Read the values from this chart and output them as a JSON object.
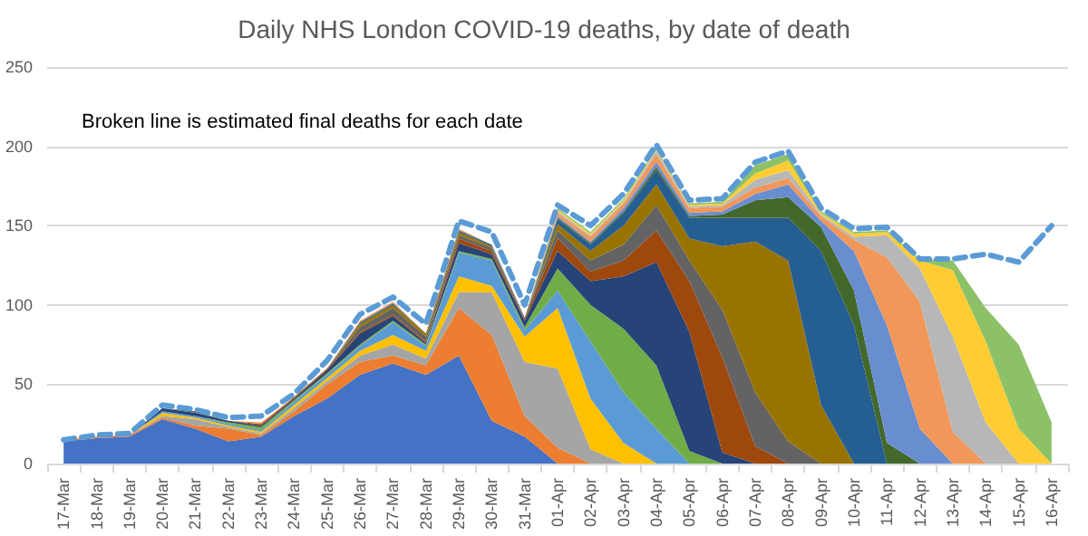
{
  "chart_data": {
    "type": "area",
    "stacked": true,
    "title": "Daily NHS London COVID-19 deaths, by date of death",
    "annotations": [
      "Broken line is estimated final deaths for each date"
    ],
    "categories": [
      "17-Mar",
      "18-Mar",
      "19-Mar",
      "20-Mar",
      "21-Mar",
      "22-Mar",
      "23-Mar",
      "24-Mar",
      "25-Mar",
      "26-Mar",
      "27-Mar",
      "28-Mar",
      "29-Mar",
      "30-Mar",
      "31-Mar",
      "01-Apr",
      "02-Apr",
      "03-Apr",
      "04-Apr",
      "05-Apr",
      "06-Apr",
      "07-Apr",
      "08-Apr",
      "09-Apr",
      "10-Apr",
      "11-Apr",
      "12-Apr",
      "13-Apr",
      "14-Apr",
      "15-Apr",
      "16-Apr"
    ],
    "series": [
      {
        "color": "#4472c4",
        "values": [
          14,
          16,
          17,
          28,
          22,
          14,
          17,
          30,
          41,
          56,
          63,
          56,
          68,
          27,
          17,
          0,
          null,
          null,
          null,
          null,
          null,
          null,
          null,
          null,
          null,
          null,
          null,
          null,
          null,
          null,
          null
        ]
      },
      {
        "color": "#ed7d31",
        "values": [
          1,
          1,
          1,
          1,
          2,
          8,
          1,
          3,
          9,
          8,
          5,
          6,
          30,
          54,
          13,
          10,
          0,
          null,
          null,
          null,
          null,
          null,
          null,
          null,
          null,
          null,
          null,
          null,
          null,
          null,
          null
        ]
      },
      {
        "color": "#a5a5a5",
        "values": [
          0,
          0,
          0,
          1,
          4,
          1,
          1,
          2,
          2,
          4,
          7,
          4,
          10,
          27,
          34,
          50,
          9,
          0,
          null,
          null,
          null,
          null,
          null,
          null,
          null,
          null,
          null,
          null,
          null,
          null,
          null
        ]
      },
      {
        "color": "#ffc000",
        "values": [
          0,
          0,
          0,
          2,
          1,
          1,
          1,
          2,
          2,
          3,
          6,
          5,
          10,
          4,
          16,
          38,
          32,
          13,
          0,
          null,
          null,
          null,
          null,
          null,
          null,
          null,
          null,
          null,
          null,
          null,
          null
        ]
      },
      {
        "color": "#5b9bd5",
        "values": [
          0,
          0,
          0,
          1,
          1,
          1,
          1,
          2,
          2,
          3,
          8,
          3,
          15,
          16,
          4,
          11,
          36,
          32,
          22,
          0,
          null,
          null,
          null,
          null,
          null,
          null,
          null,
          null,
          null,
          null,
          null
        ]
      },
      {
        "color": "#70ad47",
        "values": [
          0,
          0,
          0,
          0,
          0,
          1,
          2,
          1,
          1,
          1,
          1,
          1,
          1,
          1,
          2,
          14,
          23,
          40,
          40,
          8,
          0,
          null,
          null,
          null,
          null,
          null,
          null,
          null,
          null,
          null,
          null
        ]
      },
      {
        "color": "#264478",
        "values": [
          0,
          0,
          0,
          2,
          2,
          1,
          1,
          1,
          2,
          7,
          3,
          1,
          5,
          3,
          4,
          11,
          15,
          33,
          65,
          75,
          7,
          0,
          null,
          null,
          null,
          null,
          null,
          null,
          null,
          null,
          null
        ]
      },
      {
        "color": "#9e480e",
        "values": [
          0,
          0,
          0,
          0,
          0,
          0,
          1,
          1,
          1,
          1,
          1,
          1,
          3,
          2,
          1,
          8,
          6,
          10,
          20,
          32,
          60,
          11,
          0,
          null,
          null,
          null,
          null,
          null,
          null,
          null,
          null
        ]
      },
      {
        "color": "#636363",
        "values": [
          0,
          0,
          0,
          0,
          1,
          0,
          0,
          0,
          0,
          3,
          4,
          3,
          2,
          2,
          1,
          5,
          7,
          10,
          16,
          13,
          30,
          34,
          14,
          0,
          null,
          null,
          null,
          null,
          null,
          null,
          null
        ]
      },
      {
        "color": "#997300",
        "values": [
          0,
          0,
          0,
          0,
          0,
          0,
          0,
          0,
          0,
          2,
          2,
          2,
          2,
          1,
          0,
          4,
          6,
          12,
          13,
          14,
          40,
          95,
          114,
          37,
          0,
          null,
          null,
          null,
          null,
          null,
          null
        ]
      },
      {
        "color": "#255e91",
        "values": [
          0,
          0,
          0,
          0,
          0,
          0,
          0,
          0,
          0,
          1,
          1,
          0,
          1,
          1,
          0,
          3,
          4,
          8,
          9,
          13,
          18,
          15,
          27,
          97,
          87,
          0,
          null,
          null,
          null,
          null,
          null
        ]
      },
      {
        "color": "#43682b",
        "values": [
          0,
          0,
          0,
          0,
          0,
          0,
          0,
          0,
          0,
          0,
          0,
          0,
          0,
          0,
          0,
          1,
          1,
          1,
          2,
          1,
          2,
          11,
          13,
          15,
          22,
          13,
          0,
          null,
          null,
          null,
          null
        ]
      },
      {
        "color": "#698ed0",
        "values": [
          0,
          0,
          0,
          0,
          0,
          0,
          0,
          0,
          0,
          0,
          0,
          0,
          0,
          0,
          0,
          1,
          1,
          2,
          3,
          2,
          2,
          4,
          8,
          4,
          25,
          74,
          22,
          0,
          null,
          null,
          null
        ]
      },
      {
        "color": "#f1975a",
        "values": [
          0,
          0,
          0,
          0,
          0,
          0,
          1,
          0,
          0,
          1,
          1,
          0,
          1,
          0,
          0,
          2,
          3,
          3,
          5,
          3,
          3,
          4,
          4,
          3,
          7,
          43,
          80,
          20,
          0,
          null,
          null
        ]
      },
      {
        "color": "#b7b7b7",
        "values": [
          0,
          0,
          0,
          0,
          0,
          0,
          0,
          0,
          0,
          0,
          0,
          0,
          0,
          0,
          0,
          1,
          1,
          1,
          2,
          1,
          1,
          5,
          5,
          1,
          2,
          14,
          21,
          60,
          26,
          0,
          null
        ]
      },
      {
        "color": "#ffcd33",
        "values": [
          0,
          0,
          0,
          0,
          0,
          0,
          0,
          0,
          0,
          0,
          0,
          0,
          0,
          0,
          0,
          1,
          1,
          1,
          1,
          1,
          1,
          4,
          6,
          1,
          2,
          2,
          5,
          42,
          51,
          22,
          0
        ]
      },
      {
        "color": "#8cc168",
        "values": [
          null,
          null,
          null,
          null,
          null,
          null,
          null,
          null,
          null,
          null,
          null,
          null,
          null,
          null,
          0,
          1,
          1,
          1,
          1,
          1,
          1,
          5,
          4,
          1,
          1,
          1,
          1,
          6,
          21,
          53,
          26
        ]
      },
      {
        "type": "line",
        "line_style": "dashed",
        "color": "#5b9bd5",
        "values": [
          15,
          18,
          19,
          37,
          34,
          29,
          30,
          44,
          65,
          94,
          105,
          88,
          153,
          146,
          100,
          163,
          150,
          170,
          201,
          166,
          167,
          190,
          197,
          161,
          148,
          149,
          129,
          129,
          132,
          127,
          150
        ]
      }
    ],
    "ylim": [
      0,
      250
    ],
    "yticks": [
      0,
      50,
      100,
      150,
      200,
      250
    ],
    "grid": "y",
    "marker": "none"
  }
}
